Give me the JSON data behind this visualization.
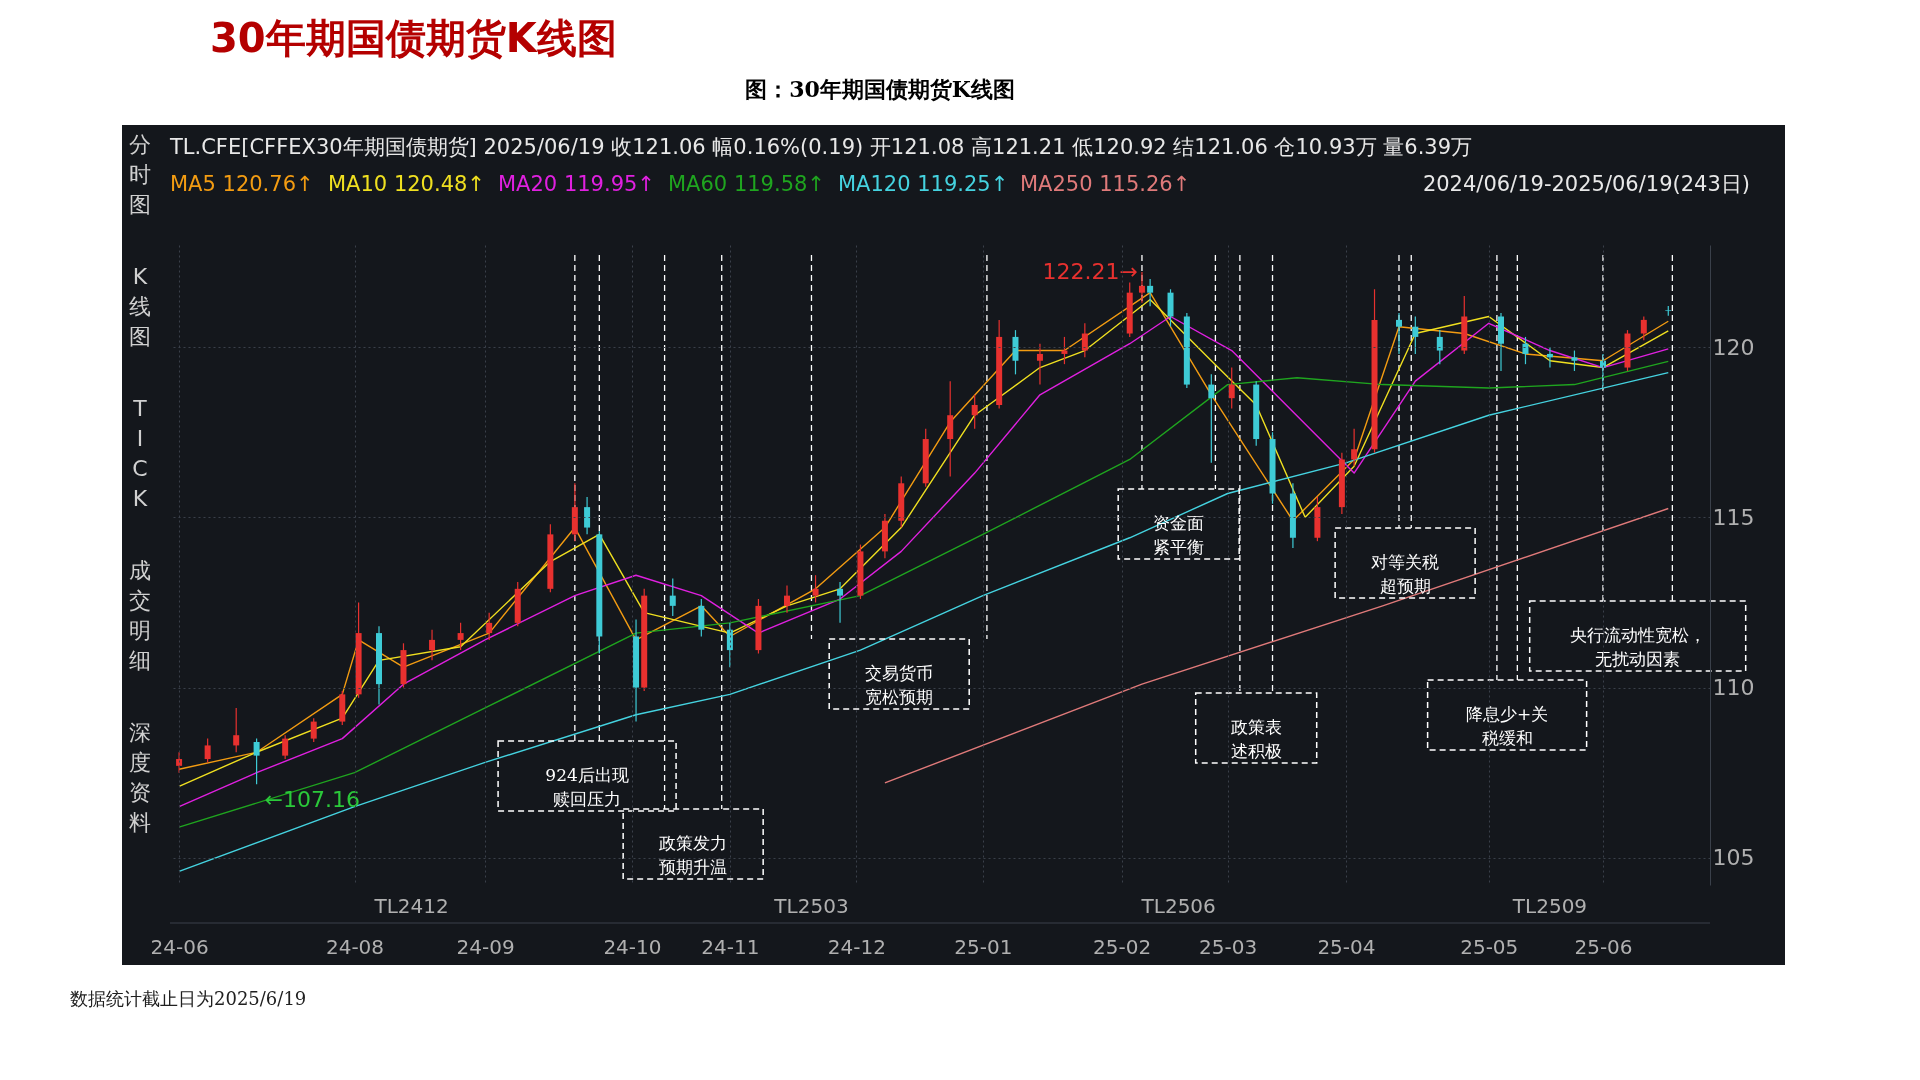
{
  "chart_data": {
    "type": "candlestick",
    "title": "30年期国债期货K线图",
    "subtitle": "图：30年期国债期货K线图",
    "x": [
      "2024-06-19",
      "2024-06-26",
      "2024-07-03",
      "2024-07-08",
      "2024-07-15",
      "2024-07-22",
      "2024-07-29",
      "2024-08-02",
      "2024-08-07",
      "2024-08-13",
      "2024-08-20",
      "2024-08-27",
      "2024-09-03",
      "2024-09-10",
      "2024-09-18",
      "2024-09-24",
      "2024-09-27",
      "2024-09-30",
      "2024-10-09",
      "2024-10-11",
      "2024-10-18",
      "2024-10-25",
      "2024-11-01",
      "2024-11-08",
      "2024-11-15",
      "2024-11-22",
      "2024-11-28",
      "2024-12-03",
      "2024-12-09",
      "2024-12-13",
      "2024-12-19",
      "2024-12-25",
      "2024-12-31",
      "2025-01-06",
      "2025-01-10",
      "2025-01-16",
      "2025-01-22",
      "2025-01-27",
      "2025-02-07",
      "2025-02-10",
      "2025-02-12",
      "2025-02-17",
      "2025-02-21",
      "2025-02-27",
      "2025-03-04",
      "2025-03-10",
      "2025-03-14",
      "2025-03-19",
      "2025-03-25",
      "2025-03-31",
      "2025-04-03",
      "2025-04-08",
      "2025-04-14",
      "2025-04-18",
      "2025-04-24",
      "2025-04-30",
      "2025-05-09",
      "2025-05-15",
      "2025-05-21",
      "2025-05-27",
      "2025-06-03",
      "2025-06-09",
      "2025-06-13",
      "2025-06-19"
    ],
    "ohlc": [
      [
        107.7,
        108.1,
        107.5,
        107.9
      ],
      [
        107.9,
        108.5,
        107.8,
        108.3
      ],
      [
        108.3,
        109.4,
        108.1,
        108.6
      ],
      [
        108.4,
        108.5,
        107.16,
        108.0
      ],
      [
        108.0,
        108.6,
        107.9,
        108.5
      ],
      [
        108.5,
        109.1,
        108.4,
        109.0
      ],
      [
        109.0,
        109.9,
        108.9,
        109.8
      ],
      [
        109.8,
        112.5,
        109.7,
        111.6
      ],
      [
        111.6,
        111.8,
        109.5,
        110.1
      ],
      [
        110.1,
        111.3,
        110.0,
        111.1
      ],
      [
        111.1,
        111.7,
        110.8,
        111.4
      ],
      [
        111.4,
        111.9,
        111.1,
        111.6
      ],
      [
        111.6,
        112.2,
        111.4,
        111.9
      ],
      [
        111.9,
        113.1,
        111.8,
        112.9
      ],
      [
        112.9,
        114.8,
        112.8,
        114.5
      ],
      [
        114.5,
        116.0,
        114.3,
        115.3
      ],
      [
        115.3,
        115.6,
        114.5,
        114.7
      ],
      [
        114.5,
        114.6,
        111.0,
        111.5
      ],
      [
        111.5,
        112.0,
        109.0,
        110.0
      ],
      [
        110.0,
        112.9,
        109.9,
        112.7
      ],
      [
        112.7,
        113.2,
        112.1,
        112.4
      ],
      [
        112.4,
        112.6,
        111.5,
        111.7
      ],
      [
        111.7,
        111.9,
        110.6,
        111.1
      ],
      [
        111.1,
        112.6,
        111.0,
        112.4
      ],
      [
        112.4,
        113.0,
        112.2,
        112.7
      ],
      [
        112.7,
        113.3,
        112.5,
        112.9
      ],
      [
        112.9,
        113.1,
        111.9,
        112.7
      ],
      [
        112.7,
        114.2,
        112.6,
        114.0
      ],
      [
        114.0,
        115.1,
        113.8,
        114.9
      ],
      [
        114.9,
        116.2,
        114.7,
        116.0
      ],
      [
        116.0,
        117.6,
        115.9,
        117.3
      ],
      [
        117.3,
        119.0,
        116.2,
        118.0
      ],
      [
        118.0,
        118.6,
        117.6,
        118.3
      ],
      [
        118.3,
        120.8,
        118.2,
        120.3
      ],
      [
        120.3,
        120.5,
        119.2,
        119.6
      ],
      [
        119.6,
        120.1,
        118.9,
        119.8
      ],
      [
        119.8,
        120.3,
        119.5,
        119.9
      ],
      [
        119.9,
        120.7,
        119.7,
        120.4
      ],
      [
        120.4,
        121.9,
        120.3,
        121.6
      ],
      [
        121.6,
        122.21,
        121.3,
        121.8
      ],
      [
        121.8,
        122.0,
        121.2,
        121.6
      ],
      [
        121.6,
        121.7,
        120.6,
        120.9
      ],
      [
        120.9,
        121.0,
        118.8,
        118.9
      ],
      [
        118.9,
        119.2,
        116.6,
        118.5
      ],
      [
        118.5,
        119.4,
        118.2,
        118.9
      ],
      [
        118.9,
        119.0,
        117.1,
        117.3
      ],
      [
        117.3,
        117.5,
        115.4,
        115.7
      ],
      [
        115.7,
        116.0,
        114.1,
        114.4
      ],
      [
        114.4,
        115.6,
        114.3,
        115.3
      ],
      [
        115.3,
        116.9,
        115.1,
        116.7
      ],
      [
        116.7,
        117.6,
        116.5,
        117.0
      ],
      [
        117.0,
        121.7,
        116.9,
        120.8
      ],
      [
        120.8,
        121.0,
        119.8,
        120.6
      ],
      [
        120.6,
        120.9,
        119.8,
        120.3
      ],
      [
        120.3,
        120.5,
        119.5,
        119.9
      ],
      [
        119.9,
        121.5,
        119.8,
        120.9
      ],
      [
        120.9,
        121.0,
        119.3,
        120.1
      ],
      [
        120.1,
        120.3,
        119.5,
        119.8
      ],
      [
        119.8,
        120.0,
        119.4,
        119.7
      ],
      [
        119.7,
        119.9,
        119.3,
        119.6
      ],
      [
        119.6,
        119.8,
        118.8,
        119.4
      ],
      [
        119.4,
        120.5,
        119.3,
        120.4
      ],
      [
        120.4,
        120.9,
        120.2,
        120.8
      ],
      [
        121.08,
        121.21,
        120.92,
        121.06
      ]
    ],
    "series": [
      {
        "name": "MA5 120.76↑",
        "type": "line",
        "color": "#f39c12",
        "x": [
          "2024-06-19",
          "2024-07-08",
          "2024-07-29",
          "2024-08-02",
          "2024-08-13",
          "2024-09-03",
          "2024-09-24",
          "2024-10-09",
          "2024-10-25",
          "2024-11-01",
          "2024-11-22",
          "2024-12-09",
          "2024-12-25",
          "2025-01-10",
          "2025-01-22",
          "2025-02-12",
          "2025-02-27",
          "2025-03-19",
          "2025-04-03",
          "2025-04-14",
          "2025-04-30",
          "2025-05-15",
          "2025-06-03",
          "2025-06-19"
        ],
        "values": [
          107.6,
          108.1,
          109.8,
          111.4,
          110.6,
          111.6,
          114.7,
          111.4,
          112.4,
          111.5,
          112.9,
          114.7,
          117.8,
          119.9,
          119.9,
          121.6,
          118.6,
          114.9,
          116.7,
          120.6,
          120.4,
          119.8,
          119.6,
          120.76
        ]
      },
      {
        "name": "MA10 120.48↑",
        "type": "line",
        "color": "#f0e020",
        "x": [
          "2024-06-19",
          "2024-07-08",
          "2024-07-29",
          "2024-08-07",
          "2024-08-27",
          "2024-09-18",
          "2024-09-30",
          "2024-10-11",
          "2024-11-01",
          "2024-11-15",
          "2024-11-28",
          "2024-12-13",
          "2024-12-31",
          "2025-01-16",
          "2025-01-27",
          "2025-02-12",
          "2025-02-27",
          "2025-03-10",
          "2025-03-22",
          "2025-04-03",
          "2025-04-18",
          "2025-05-06",
          "2025-05-21",
          "2025-06-03",
          "2025-06-19"
        ],
        "values": [
          107.1,
          108.1,
          109.1,
          110.8,
          111.2,
          113.7,
          114.5,
          112.2,
          111.6,
          112.4,
          112.9,
          114.7,
          118.0,
          119.4,
          119.9,
          121.4,
          119.6,
          118.3,
          115.0,
          116.5,
          120.4,
          120.9,
          119.6,
          119.4,
          120.48
        ]
      },
      {
        "name": "MA20 119.95↑",
        "type": "line",
        "color": "#e020e0",
        "x": [
          "2024-06-19",
          "2024-07-08",
          "2024-07-29",
          "2024-08-13",
          "2024-09-02",
          "2024-09-24",
          "2024-10-09",
          "2024-10-25",
          "2024-11-08",
          "2024-11-28",
          "2024-12-13",
          "2024-12-31",
          "2025-01-16",
          "2025-02-07",
          "2025-02-17",
          "2025-03-04",
          "2025-03-19",
          "2025-04-03",
          "2025-04-18",
          "2025-05-06",
          "2025-05-21",
          "2025-06-03",
          "2025-06-19"
        ],
        "values": [
          106.5,
          107.5,
          108.5,
          110.1,
          111.4,
          112.7,
          113.3,
          112.7,
          111.6,
          112.6,
          114.0,
          116.3,
          118.6,
          120.1,
          120.9,
          119.9,
          118.1,
          116.3,
          119.0,
          120.7,
          119.9,
          119.4,
          119.95
        ]
      },
      {
        "name": "MA60 119.58↑",
        "type": "line",
        "color": "#1fa51f",
        "x": [
          "2024-06-19",
          "2024-08-01",
          "2024-09-02",
          "2024-10-09",
          "2024-11-01",
          "2024-12-03",
          "2025-01-02",
          "2025-02-07",
          "2025-03-03",
          "2025-03-20",
          "2025-04-10",
          "2025-05-06",
          "2025-05-27",
          "2025-06-19"
        ],
        "values": [
          105.9,
          107.5,
          109.4,
          111.6,
          111.9,
          112.7,
          114.5,
          116.7,
          118.9,
          119.1,
          118.9,
          118.8,
          118.9,
          119.58
        ]
      },
      {
        "name": "MA120 119.25↑",
        "type": "line",
        "color": "#45d3e0",
        "x": [
          "2024-06-19",
          "2024-08-01",
          "2024-09-02",
          "2024-10-09",
          "2024-11-01",
          "2024-12-03",
          "2025-01-02",
          "2025-02-07",
          "2025-03-03",
          "2025-04-01",
          "2025-05-06",
          "2025-06-19"
        ],
        "values": [
          104.6,
          106.5,
          107.8,
          109.2,
          109.8,
          111.1,
          112.7,
          114.4,
          115.7,
          116.6,
          118.0,
          119.25
        ]
      },
      {
        "name": "MA250 115.26↑",
        "type": "line",
        "color": "#e07a7a",
        "x": [
          "2024-12-09",
          "2025-02-10",
          "2025-04-10",
          "2025-06-19"
        ],
        "values": [
          107.2,
          110.1,
          112.4,
          115.26
        ]
      }
    ],
    "xlim": [
      "2024-06-18",
      "2025-06-28"
    ],
    "xticks": [
      {
        "value": "2024-06-19",
        "label": "24-06"
      },
      {
        "value": "2024-08-01",
        "label": "24-08"
      },
      {
        "value": "2024-09-02",
        "label": "24-09"
      },
      {
        "value": "2024-10-08",
        "label": "24-10"
      },
      {
        "value": "2024-11-01",
        "label": "24-11"
      },
      {
        "value": "2024-12-02",
        "label": "24-12"
      },
      {
        "value": "2025-01-02",
        "label": "25-01"
      },
      {
        "value": "2025-02-05",
        "label": "25-02"
      },
      {
        "value": "2025-03-03",
        "label": "25-03"
      },
      {
        "value": "2025-04-01",
        "label": "25-04"
      },
      {
        "value": "2025-05-06",
        "label": "25-05"
      },
      {
        "value": "2025-06-03",
        "label": "25-06"
      }
    ],
    "x2lim": [
      "2024-06-18",
      "2025-06-28"
    ],
    "x2ticks": [
      {
        "value": "2024-08-15",
        "label": "TL2412"
      },
      {
        "value": "2024-11-21",
        "label": "TL2503"
      },
      {
        "value": "2025-02-19",
        "label": "TL2506"
      },
      {
        "value": "2025-05-21",
        "label": "TL2509"
      }
    ],
    "ylim": [
      104.2,
      123.0
    ],
    "yticks": [
      105,
      110,
      115,
      120
    ],
    "grid": true,
    "legend": "top left",
    "marker": "none",
    "line_style": "solid",
    "ref_lines": [
      {
        "axis": "x",
        "value": "2024-09-24",
        "color": "#ffffff",
        "line_style": "dashed"
      },
      {
        "axis": "x",
        "value": "2024-09-30",
        "color": "#ffffff",
        "line_style": "dashed"
      },
      {
        "axis": "x",
        "value": "2024-10-16",
        "color": "#ffffff",
        "line_style": "dashed"
      },
      {
        "axis": "x",
        "value": "2024-10-30",
        "color": "#ffffff",
        "line_style": "dashed"
      },
      {
        "axis": "x",
        "value": "2024-11-21",
        "color": "#ffffff",
        "line_style": "dashed"
      },
      {
        "axis": "x",
        "value": "2025-01-03",
        "color": "#ffffff",
        "line_style": "dashed"
      },
      {
        "axis": "x",
        "value": "2025-02-10",
        "color": "#ffffff",
        "line_style": "dashed"
      },
      {
        "axis": "x",
        "value": "2025-02-28",
        "color": "#ffffff",
        "line_style": "dashed"
      },
      {
        "axis": "x",
        "value": "2025-03-06",
        "color": "#ffffff",
        "line_style": "dashed"
      },
      {
        "axis": "x",
        "value": "2025-03-14",
        "color": "#ffffff",
        "line_style": "dashed"
      },
      {
        "axis": "x",
        "value": "2025-04-14",
        "color": "#ffffff",
        "line_style": "dashed"
      },
      {
        "axis": "x",
        "value": "2025-04-17",
        "color": "#ffffff",
        "line_style": "dashed"
      },
      {
        "axis": "x",
        "value": "2025-05-08",
        "color": "#ffffff",
        "line_style": "dashed"
      },
      {
        "axis": "x",
        "value": "2025-05-13",
        "color": "#ffffff",
        "line_style": "dashed"
      },
      {
        "axis": "x",
        "value": "2025-06-03",
        "color": "#ffffff",
        "line_style": "dashed"
      },
      {
        "axis": "x",
        "value": "2025-06-20",
        "color": "#ffffff",
        "line_style": "dashed"
      }
    ],
    "annotations": [
      "TL.CFE[CFFEX30年期国债期货]   2025/06/19   收121.06   幅0.16%(0.19)   开121.08   高121.21   低120.92   结121.06   仓10.93万   量6.39万",
      "2024/06/19-2025/06/19(243日)",
      "分时图",
      "K线图",
      "TICK",
      "成交明细",
      "深度资料",
      "数据统计截止日为2025/6/19",
      "924后出现赎回压力",
      "政策发力预期升温",
      "交易货币宽松预期",
      "资金面紧平衡",
      "政策表述积极",
      "对等关税超预期",
      "降息少+关税缓和",
      "央行流动性宽松，无扰动因素",
      {
        "text": "122.21→",
        "x": "2025-02-10",
        "y": 122.21
      },
      {
        "text": "←107.16",
        "x": "2024-07-08",
        "y": 107.16
      }
    ]
  }
}
